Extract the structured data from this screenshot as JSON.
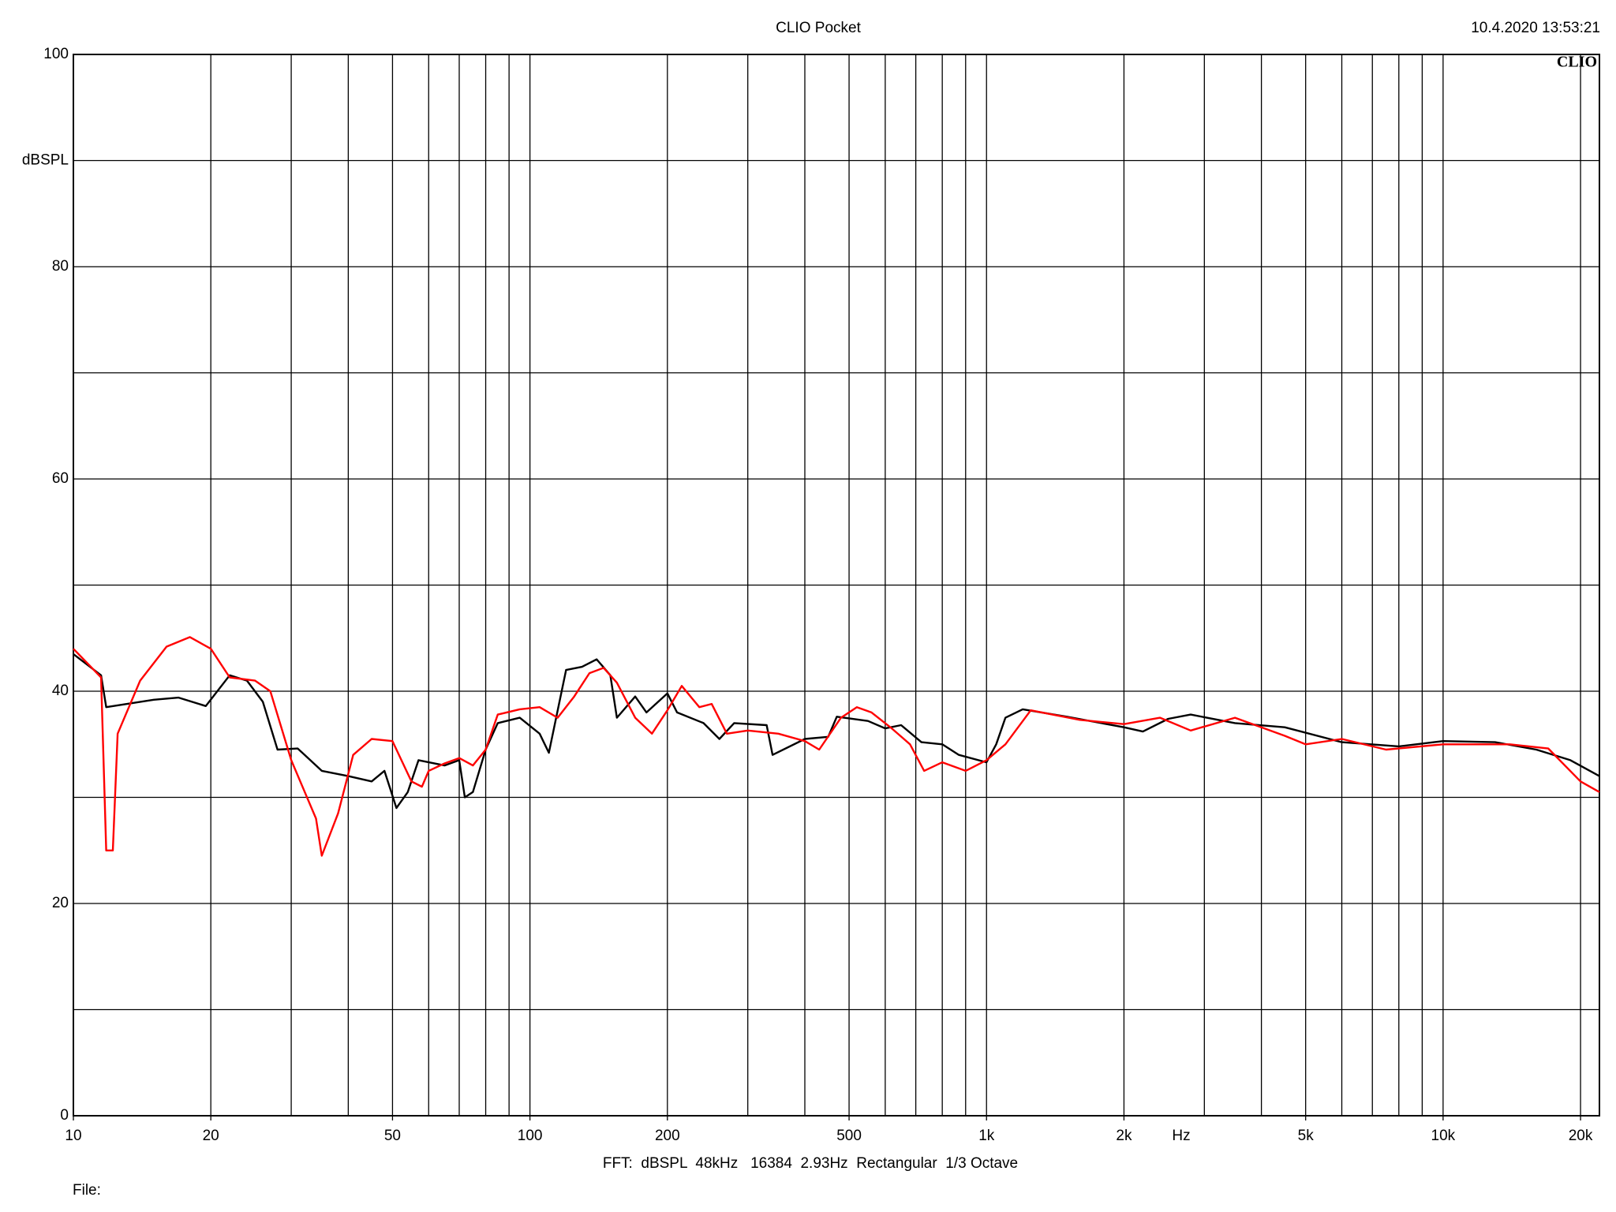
{
  "chart_data": {
    "type": "line",
    "title": "CLIO Pocket",
    "timestamp": "10.4.2020 13:53:21",
    "logo": "CLIO",
    "ylabel": "dBSPL",
    "xlabel": "Hz",
    "footer": "FFT:  dBSPL  48kHz   16384  2.93Hz  Rectangular  1/3 Octave",
    "file_label": "File:",
    "xscale": "log",
    "xlim": [
      10,
      22000
    ],
    "ylim": [
      0,
      100
    ],
    "yticks": [
      0,
      20,
      40,
      60,
      80,
      100
    ],
    "ygrid_minor": [
      10,
      30,
      50,
      70,
      90
    ],
    "xticks": [
      10,
      20,
      50,
      100,
      200,
      500,
      {
        "value": 1000,
        "label": "1k"
      },
      {
        "value": 2000,
        "label": "2k"
      },
      {
        "value": 5000,
        "label": "5k"
      },
      {
        "value": 10000,
        "label": "10k"
      },
      {
        "value": 20000,
        "label": "20k"
      }
    ],
    "xgrid": [
      20,
      30,
      40,
      50,
      60,
      70,
      80,
      90,
      100,
      200,
      300,
      400,
      500,
      600,
      700,
      800,
      900,
      1000,
      2000,
      3000,
      4000,
      5000,
      6000,
      7000,
      8000,
      9000,
      10000,
      20000
    ],
    "grid": true,
    "series": [
      {
        "color": "#000000",
        "x": [
          10,
          11.5,
          11.8,
          15,
          17,
          19.5,
          22,
          24,
          26,
          28,
          31,
          35,
          40,
          45,
          48,
          51,
          54,
          57,
          65,
          70,
          72,
          75,
          80,
          85,
          95,
          105,
          110,
          120,
          130,
          140,
          150,
          155,
          170,
          180,
          200,
          210,
          240,
          260,
          280,
          330,
          340,
          400,
          450,
          470,
          550,
          600,
          650,
          720,
          800,
          870,
          1000,
          1050,
          1100,
          1200,
          1500,
          2000,
          2200,
          2500,
          2800,
          3500,
          4500,
          6000,
          8000,
          10000,
          13000,
          16000,
          19000,
          22000
        ],
        "values": [
          43.5,
          41.5,
          38.5,
          39.2,
          39.4,
          38.6,
          41.5,
          41,
          39,
          34.5,
          34.6,
          32.5,
          32,
          31.5,
          32.5,
          29,
          30.5,
          33.5,
          33,
          33.5,
          30,
          30.5,
          34.5,
          37,
          37.5,
          36,
          34.2,
          42,
          42.3,
          43,
          41.5,
          37.5,
          39.5,
          38,
          39.8,
          38,
          37,
          35.5,
          37,
          36.8,
          34,
          35.5,
          35.7,
          37.6,
          37.2,
          36.5,
          36.8,
          35.2,
          35,
          34,
          33.3,
          35,
          37.5,
          38.3,
          37.6,
          36.6,
          36.2,
          37.4,
          37.8,
          37,
          36.6,
          35.2,
          34.8,
          35.3,
          35.2,
          34.5,
          33.5,
          32
        ]
      },
      {
        "color": "#ff0000",
        "x": [
          10,
          11.5,
          11.8,
          12.2,
          12.5,
          14,
          16,
          18,
          20,
          22,
          25,
          27,
          30,
          34,
          35,
          38,
          41,
          45,
          50,
          55,
          58,
          60,
          65,
          70,
          75,
          80,
          85,
          95,
          105,
          115,
          125,
          135,
          145,
          155,
          170,
          185,
          200,
          215,
          235,
          250,
          270,
          300,
          350,
          400,
          430,
          480,
          520,
          560,
          620,
          680,
          730,
          800,
          900,
          1000,
          1100,
          1250,
          1600,
          2000,
          2400,
          2800,
          3500,
          4500,
          5000,
          6000,
          7500,
          10000,
          14000,
          17000,
          20000,
          22000
        ],
        "values": [
          44,
          41.3,
          25,
          25,
          36,
          41,
          44.2,
          45.1,
          44,
          41.3,
          41,
          40,
          33.5,
          28,
          24.5,
          28.5,
          34,
          35.5,
          35.3,
          31.5,
          31,
          32.5,
          33.2,
          33.7,
          33,
          34.5,
          37.8,
          38.3,
          38.5,
          37.5,
          39.5,
          41.7,
          42.2,
          40.8,
          37.5,
          36,
          38.2,
          40.5,
          38.5,
          38.8,
          36,
          36.3,
          36,
          35.3,
          34.5,
          37.5,
          38.5,
          38,
          36.5,
          35,
          32.5,
          33.3,
          32.5,
          33.5,
          35,
          38.2,
          37.3,
          36.9,
          37.5,
          36.3,
          37.5,
          35.8,
          35,
          35.5,
          34.5,
          35,
          35,
          34.6,
          31.5,
          30.5
        ]
      }
    ]
  }
}
